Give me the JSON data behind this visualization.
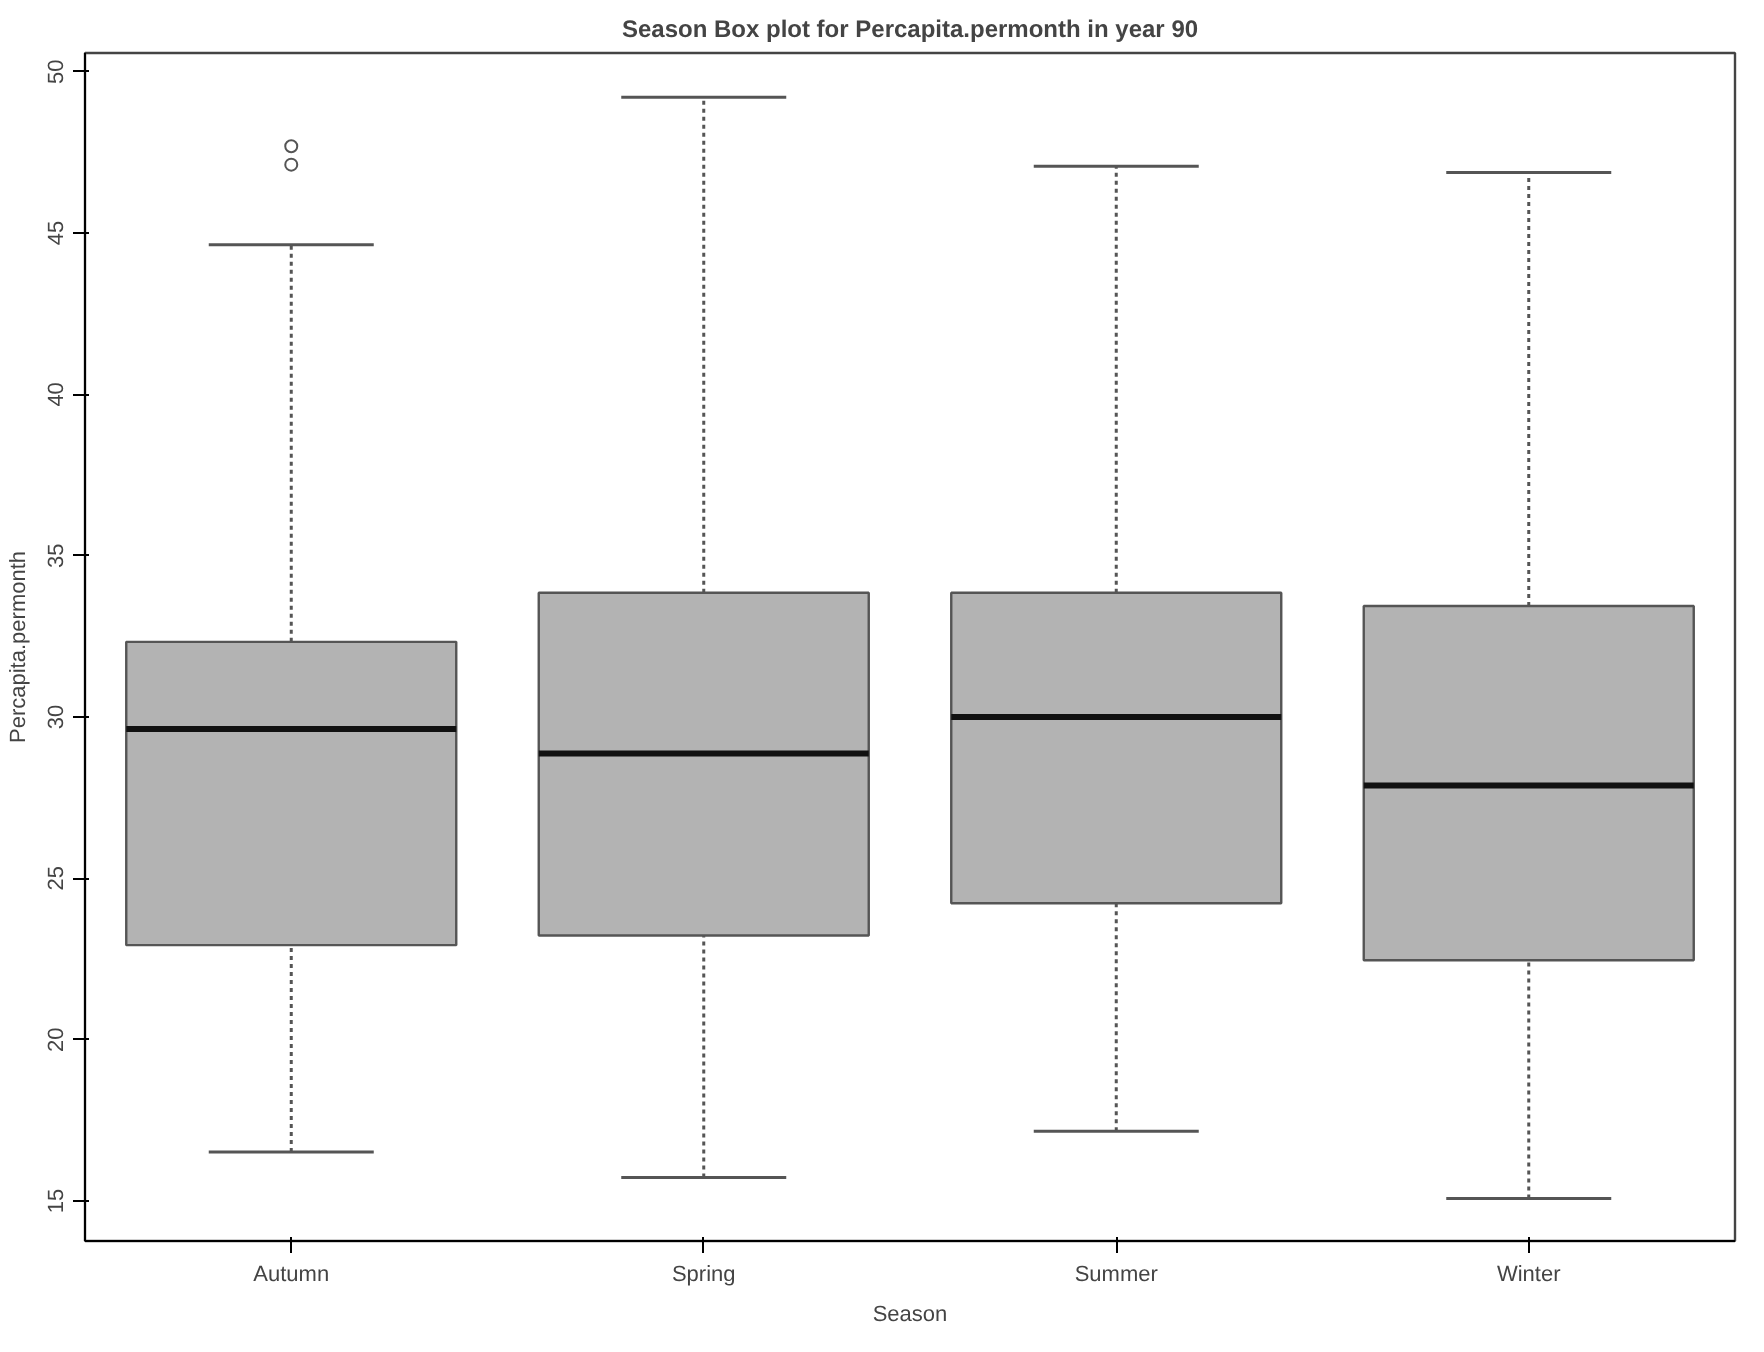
{
  "chart_data": {
    "type": "box",
    "title": "Season Box plot for Percapita.permonth in year 90",
    "xlabel": "Season",
    "ylabel": "Percapita.permonth",
    "categories": [
      "Autumn",
      "Spring",
      "Summer",
      "Winter"
    ],
    "color": "#b3b3b3",
    "ylim": [
      13.76,
      50.58
    ],
    "yticks": [
      15,
      20,
      25,
      30,
      35,
      40,
      45,
      50
    ],
    "boxes": [
      {
        "low": 16.52,
        "q1": 22.93,
        "median": 29.63,
        "q3": 32.33,
        "high": 44.64,
        "outliers": [
          47.12,
          47.69
        ]
      },
      {
        "low": 15.73,
        "q1": 23.23,
        "median": 28.87,
        "q3": 33.85,
        "high": 49.21
      },
      {
        "low": 17.16,
        "q1": 24.23,
        "median": 30.0,
        "q3": 33.85,
        "high": 47.07
      },
      {
        "low": 15.08,
        "q1": 22.46,
        "median": 27.88,
        "q3": 33.44,
        "high": 46.88
      }
    ]
  }
}
